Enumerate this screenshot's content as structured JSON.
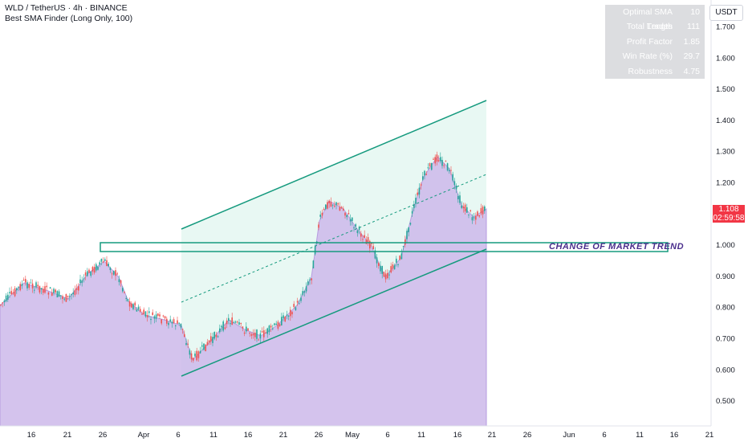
{
  "header": {
    "symbol_line": "WLD / TetherUS · 4h · BINANCE",
    "indicator_line": "Best SMA Finder (Long Only, 100)"
  },
  "stats_table": [
    {
      "label": "Optimal SMA Length",
      "value": "10"
    },
    {
      "label": "Total Trades",
      "value": "111"
    },
    {
      "label": "Profit Factor",
      "value": "1.85"
    },
    {
      "label": "Win Rate (%)",
      "value": "29.7"
    },
    {
      "label": "Robustness Score",
      "value": "4.75"
    }
  ],
  "currency_button": "USDT",
  "price_axis": [
    "1.700",
    "1.600",
    "1.500",
    "1.400",
    "1.300",
    "1.200",
    "1.100",
    "1.000",
    "0.900",
    "0.800",
    "0.700",
    "0.600",
    "0.500"
  ],
  "current_price": {
    "value": "1.108",
    "countdown": "02:59:58"
  },
  "time_axis": [
    "16",
    "21",
    "26",
    "Apr",
    "6",
    "11",
    "16",
    "21",
    "26",
    "May",
    "6",
    "11",
    "16",
    "21",
    "26",
    "Jun",
    "6",
    "11",
    "16",
    "21"
  ],
  "annotation": "CHANGE OF MARKET TREND",
  "colors": {
    "area_fill": "#cdb8ea",
    "channel_line": "#159a7e",
    "channel_fill": "#e8f8f3",
    "candle_up": "#26a69a",
    "candle_down": "#ef5350",
    "price_tag": "#f23645"
  }
}
